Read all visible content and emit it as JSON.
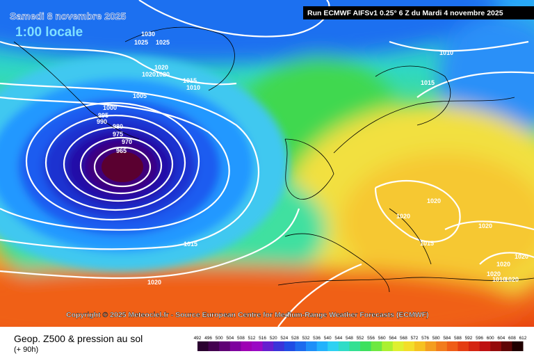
{
  "header": {
    "date": "Samedi 8 novembre 2025",
    "time": "1:00 locale",
    "run": "Run ECMWF AIFSv1 0.25° 6 Z du Mardi 4 novembre 2025"
  },
  "copyright": "Copyright © 2025 Meteociel.fr - Source European Centre for Medium-Range Weather Forecasts (ECMWF)",
  "footer": {
    "title": "Geop. Z500 & pression au sol",
    "lead": "(+ 90h)"
  },
  "legend": {
    "labels": [
      492,
      496,
      500,
      504,
      508,
      512,
      516,
      520,
      524,
      528,
      532,
      536,
      540,
      544,
      548,
      552,
      556,
      560,
      564,
      568,
      572,
      576,
      580,
      584,
      588,
      592,
      596,
      600,
      604,
      608,
      612
    ]
  },
  "isobar_labels": [
    1030,
    1025,
    1025,
    1020,
    1020,
    1020,
    1015,
    1010,
    1005,
    1000,
    995,
    990,
    980,
    975,
    970,
    965,
    1010,
    1015,
    1020,
    1020,
    1020,
    1015,
    1015,
    1020,
    1020,
    1020,
    1020,
    1010,
    1020
  ]
}
